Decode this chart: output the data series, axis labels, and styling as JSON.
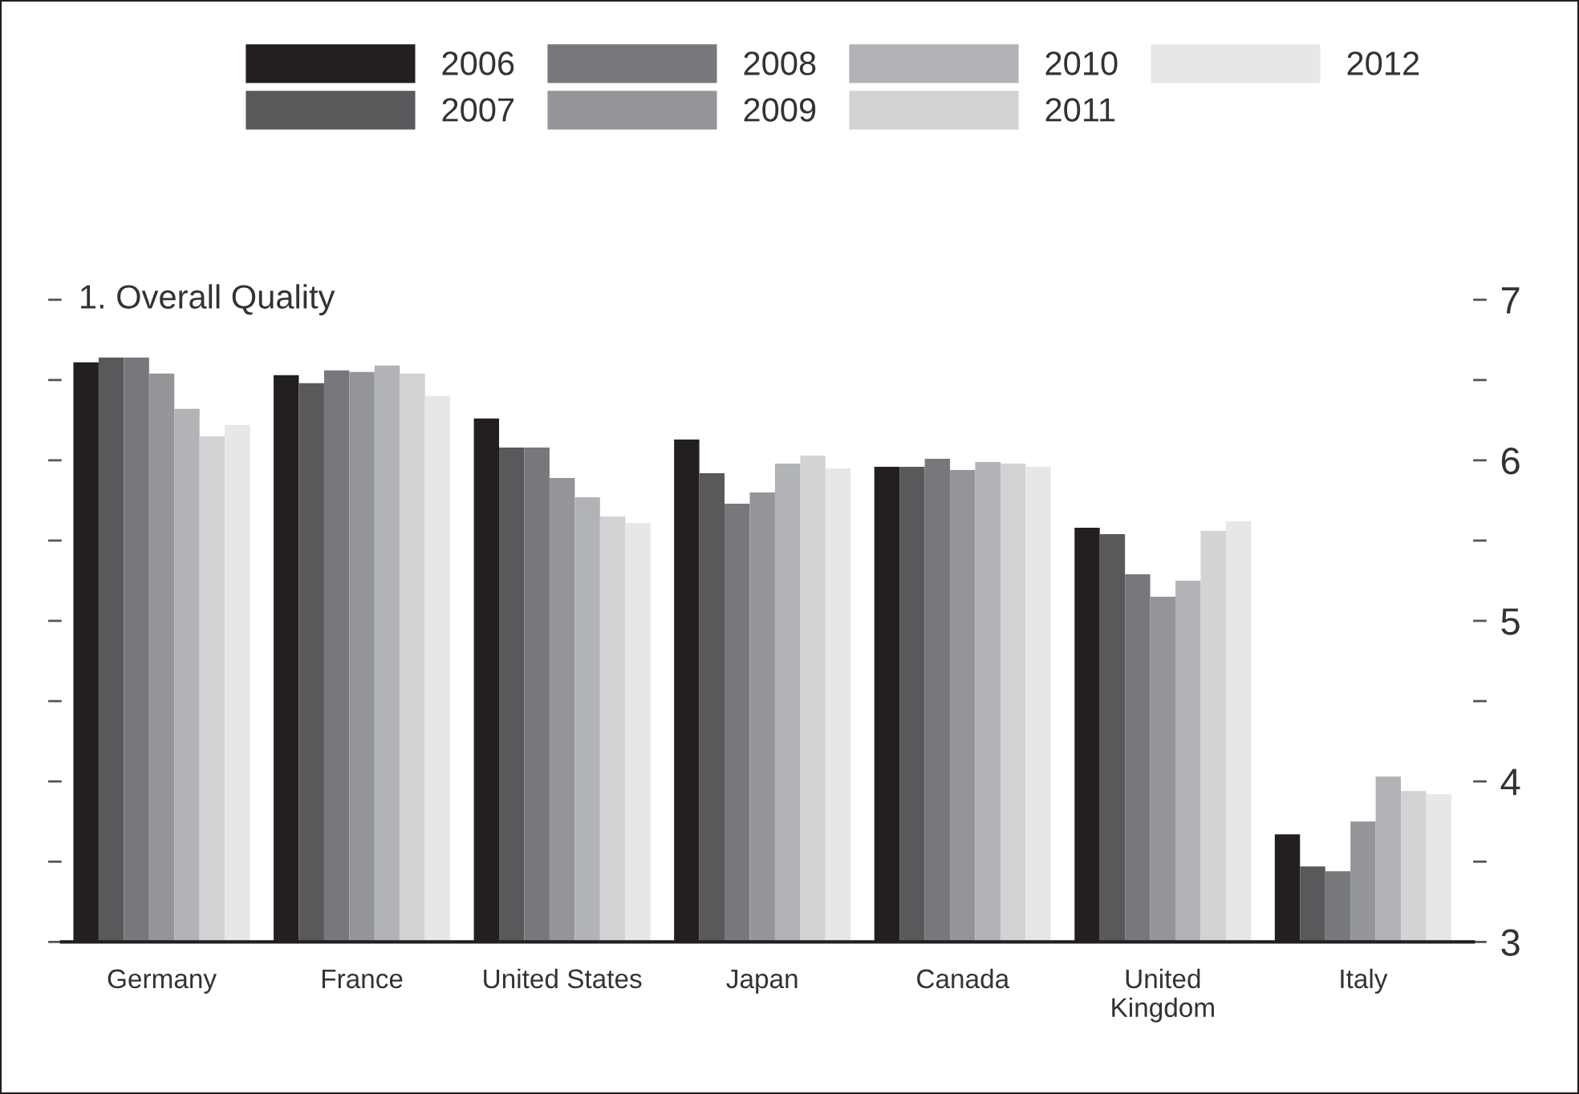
{
  "chart_data": {
    "type": "bar",
    "title": "1. Overall Quality",
    "categories": [
      "Germany",
      "France",
      "United States",
      "Japan",
      "Canada",
      "United\nKingdom",
      "Italy"
    ],
    "series": [
      {
        "name": "2006",
        "color": "#231f20",
        "values": [
          6.61,
          6.53,
          6.26,
          6.13,
          5.96,
          5.58,
          3.67
        ]
      },
      {
        "name": "2007",
        "color": "#58595b",
        "values": [
          6.64,
          6.48,
          6.08,
          5.92,
          5.96,
          5.54,
          3.47
        ]
      },
      {
        "name": "2008",
        "color": "#77787b",
        "values": [
          6.64,
          6.56,
          6.08,
          5.73,
          6.01,
          5.29,
          3.44
        ]
      },
      {
        "name": "2009",
        "color": "#939598",
        "values": [
          6.54,
          6.55,
          5.89,
          5.8,
          5.94,
          5.15,
          3.75
        ]
      },
      {
        "name": "2010",
        "color": "#b1b3b6",
        "values": [
          6.32,
          6.59,
          5.77,
          5.98,
          5.99,
          5.25,
          4.03
        ]
      },
      {
        "name": "2011",
        "color": "#d1d3d4",
        "values": [
          6.15,
          6.54,
          5.65,
          6.03,
          5.98,
          5.56,
          3.94
        ]
      },
      {
        "name": "2012",
        "color": "#e6e7e8",
        "values": [
          6.22,
          6.4,
          5.61,
          5.95,
          5.96,
          5.62,
          3.92
        ]
      }
    ],
    "ylim": [
      3,
      7
    ],
    "yticks": [
      3,
      {
        "value": 3.5,
        "label": null
      },
      4,
      {
        "value": 4.5,
        "label": null
      },
      5,
      {
        "value": 5.5,
        "label": null
      },
      6,
      {
        "value": 6.5,
        "label": null
      },
      7
    ],
    "legend": "top left",
    "grid": false
  }
}
